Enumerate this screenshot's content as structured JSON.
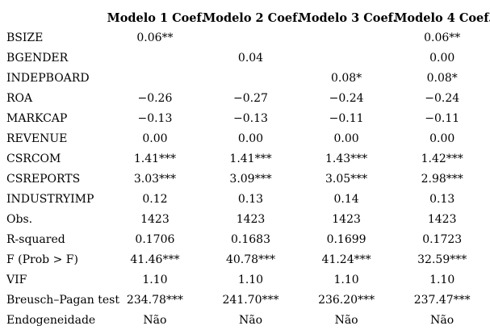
{
  "table": {
    "columns": [
      "Modelo 1 Coef.",
      "Modelo 2 Coef.",
      "Modelo 3 Coef.",
      "Modelo 4 Coef."
    ],
    "rows": [
      {
        "label": "BSIZE",
        "values": [
          "0.06**",
          "",
          "",
          "0.06**"
        ]
      },
      {
        "label": "BGENDER",
        "values": [
          "",
          "0.04",
          "",
          "0.00"
        ]
      },
      {
        "label": "INDEPBOARD",
        "values": [
          "",
          "",
          "0.08*",
          "0.08*"
        ]
      },
      {
        "label": "ROA",
        "values": [
          "−0.26",
          "−0.27",
          "−0.24",
          "−0.24"
        ]
      },
      {
        "label": "MARKCAP",
        "values": [
          "−0.13",
          "−0.13",
          "−0.11",
          "−0.11"
        ]
      },
      {
        "label": "REVENUE",
        "values": [
          "0.00",
          "0.00",
          "0.00",
          "0.00"
        ]
      },
      {
        "label": "CSRCOM",
        "values": [
          "1.41***",
          "1.41***",
          "1.43***",
          "1.42***"
        ]
      },
      {
        "label": "CSREPORTS",
        "values": [
          "3.03***",
          "3.09***",
          "3.05***",
          "2.98***"
        ]
      },
      {
        "label": "INDUSTRYIMP",
        "values": [
          "0.12",
          "0.13",
          "0.14",
          "0.13"
        ]
      },
      {
        "label": "Obs.",
        "values": [
          "1423",
          "1423",
          "1423",
          "1423"
        ]
      },
      {
        "label": "R-squared",
        "values": [
          "0.1706",
          "0.1683",
          "0.1699",
          "0.1723"
        ]
      },
      {
        "label": "F (Prob > F)",
        "values": [
          "41.46***",
          "40.78***",
          "41.24***",
          "32.59***"
        ]
      },
      {
        "label": "VIF",
        "values": [
          "1.10",
          "1.10",
          "1.10",
          "1.10"
        ]
      },
      {
        "label": "Breusch–Pagan test",
        "values": [
          "234.78***",
          "241.70***",
          "236.20***",
          "237.47***"
        ]
      },
      {
        "label": "Endogeneidade",
        "values": [
          "Não",
          "Não",
          "Não",
          "Não"
        ]
      }
    ]
  },
  "colors": {
    "text": "#000000",
    "background": "#ffffff"
  }
}
